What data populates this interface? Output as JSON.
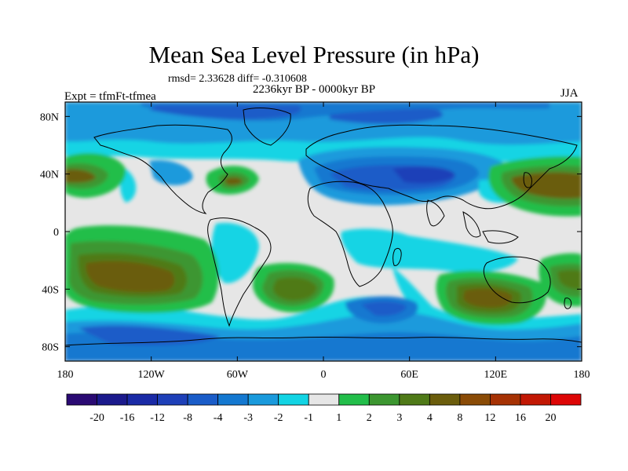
{
  "title": "Mean Sea Level Pressure (in hPa)",
  "stats": "rmsd= 2.33628 diff= -0.310608",
  "period": "2236kyr BP - 0000kyr BP",
  "experiment": "Expt = tfmFt-tfmea",
  "season": "JJA",
  "axes": {
    "lon_ticks": [
      {
        "lon": -180,
        "label": "180"
      },
      {
        "lon": -120,
        "label": "120W"
      },
      {
        "lon": -60,
        "label": "60W"
      },
      {
        "lon": 0,
        "label": "0"
      },
      {
        "lon": 60,
        "label": "60E"
      },
      {
        "lon": 120,
        "label": "120E"
      },
      {
        "lon": 180,
        "label": "180"
      }
    ],
    "lat_ticks": [
      {
        "lat": 80,
        "label": "80N"
      },
      {
        "lat": 40,
        "label": "40N"
      },
      {
        "lat": 0,
        "label": "0"
      },
      {
        "lat": -40,
        "label": "40S"
      },
      {
        "lat": -80,
        "label": "80S"
      }
    ],
    "lat_range": [
      -90,
      90
    ],
    "lon_range": [
      -180,
      180
    ]
  },
  "colorbar": {
    "labels": [
      "-20",
      "-16",
      "-12",
      "-8",
      "-4",
      "-3",
      "-2",
      "-1",
      "1",
      "2",
      "3",
      "4",
      "8",
      "12",
      "16",
      "20"
    ],
    "colors": [
      "#2a0a73",
      "#1b1a8c",
      "#1a2aa6",
      "#1e40b8",
      "#1a5cc8",
      "#1478d0",
      "#1a9adc",
      "#12d4e4",
      "#e6e6e6",
      "#22be4a",
      "#3c9630",
      "#4f7a18",
      "#6b5d0c",
      "#8a4b06",
      "#a63204",
      "#c21804",
      "#dd0606"
    ]
  }
}
